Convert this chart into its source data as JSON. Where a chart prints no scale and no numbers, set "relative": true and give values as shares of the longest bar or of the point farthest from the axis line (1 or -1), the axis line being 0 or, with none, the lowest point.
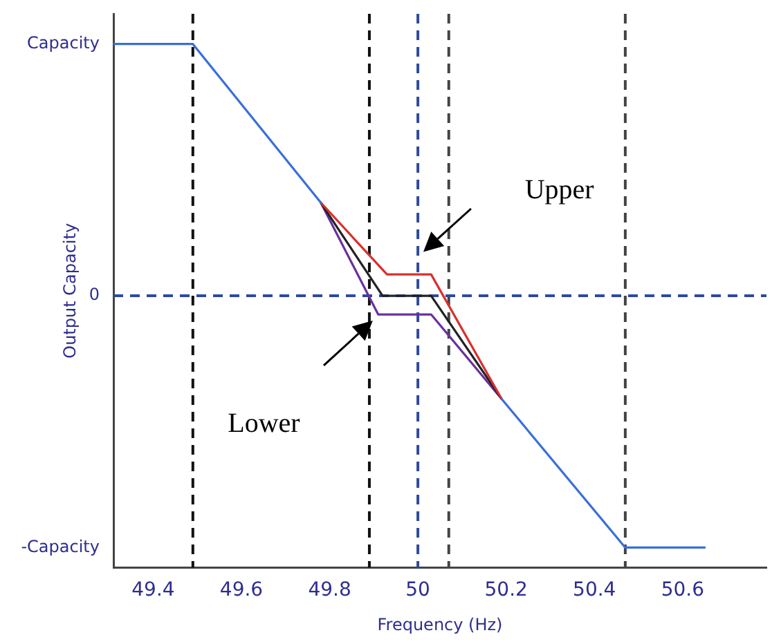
{
  "chart_data": {
    "type": "line",
    "xlabel": "Frequency (Hz)",
    "ylabel": "Output Capacity",
    "xlim": [
      49.31,
      50.79
    ],
    "relative": true,
    "xticks": [
      49.4,
      49.6,
      49.8,
      50,
      50.2,
      50.4,
      50.6
    ],
    "series": [
      {
        "color": "#3a6fd8",
        "x": [
          49.31,
          49.49,
          49.78,
          50.0,
          50.19,
          50.47,
          50.65
        ],
        "values": [
          1,
          1,
          0.37,
          null,
          -0.41,
          -1,
          -1
        ]
      },
      {
        "color": "#d9302c",
        "x": [
          49.78,
          49.93,
          50.03,
          50.19
        ],
        "values": [
          0.37,
          0.085,
          0.085,
          -0.41
        ]
      },
      {
        "color": "#222222",
        "x": [
          49.78,
          49.92,
          50.03,
          50.19
        ],
        "values": [
          0.37,
          0,
          0,
          -0.41
        ]
      },
      {
        "color": "#6a2fa0",
        "x": [
          49.78,
          49.91,
          50.03,
          50.19
        ],
        "values": [
          0.37,
          -0.074,
          -0.074,
          -0.41
        ]
      }
    ],
    "ref_lines": [
      {
        "axis": "x",
        "value": 49.49,
        "color": "#111111",
        "line_style": "dashed"
      },
      {
        "axis": "x",
        "value": 49.89,
        "color": "#111111",
        "line_style": "dashed"
      },
      {
        "axis": "x",
        "value": 50.0,
        "color": "#2e4a9a",
        "line_style": "dashed"
      },
      {
        "axis": "x",
        "value": 50.07,
        "color": "#444444",
        "line_style": "dashed"
      },
      {
        "axis": "x",
        "value": 50.47,
        "color": "#444444",
        "line_style": "dashed"
      },
      {
        "axis": "y",
        "value": 0,
        "label": "0",
        "color": "#2e4a9a",
        "line_style": "dashed"
      }
    ],
    "annotations": [
      "Capacity",
      "-Capacity",
      "Upper",
      "Lower"
    ],
    "grid": false,
    "legend": false,
    "marker": "none",
    "line_style": "solid"
  }
}
